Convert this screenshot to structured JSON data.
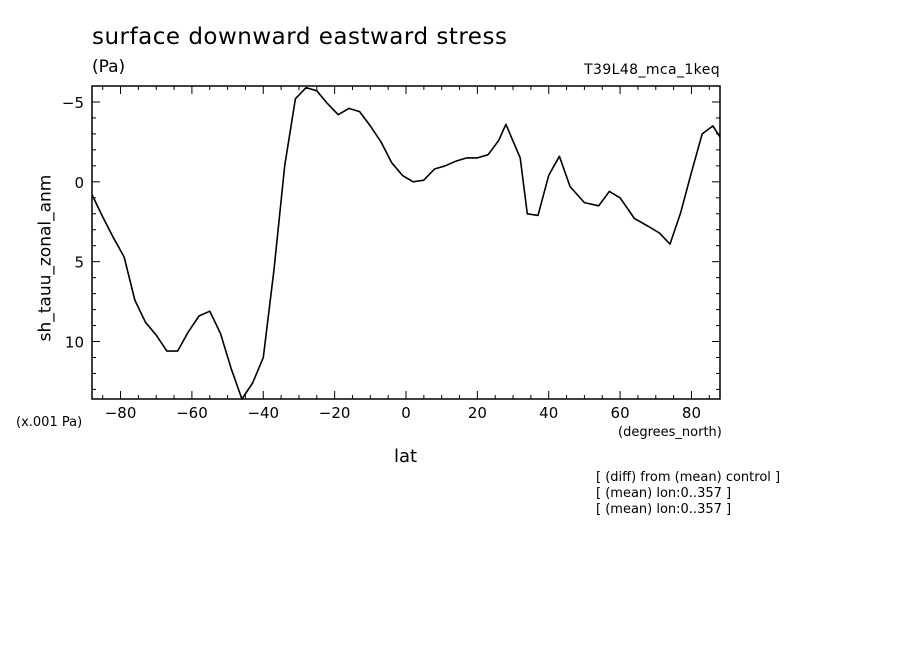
{
  "header": {
    "title": "surface downward eastward stress",
    "units": "(Pa)",
    "run": "T39L48_mca_1keq"
  },
  "annotations": {
    "scale": "(x.001 Pa)",
    "xunits": "(degrees_north)",
    "notes": [
      "[ (diff) from (mean) control ]",
      "[ (mean) lon:0..357 ]",
      "[ (mean) lon:0..357 ]"
    ]
  },
  "chart_data": {
    "type": "line",
    "title": "surface downward eastward stress",
    "xlabel": "lat",
    "ylabel": "sh_tauu_zonal_anm",
    "xlim": [
      -88,
      88
    ],
    "ylim": [
      13.6,
      -6
    ],
    "y_inverted": true,
    "x_ticks": [
      -80,
      -60,
      -40,
      -20,
      0,
      20,
      40,
      60,
      80
    ],
    "y_ticks": [
      -5,
      0,
      5,
      10
    ],
    "x_tick_labels": [
      "−80",
      "−60",
      "−40",
      "−20",
      "0",
      "20",
      "40",
      "60",
      "80"
    ],
    "y_tick_labels": [
      "−5",
      "0",
      "5",
      "10"
    ],
    "grid": false,
    "series": [
      {
        "color": "#000000",
        "x": [
          -88,
          -85,
          -82,
          -79,
          -76,
          -73,
          -70,
          -67,
          -64,
          -61,
          -58,
          -55,
          -52,
          -49,
          -46,
          -43,
          -40,
          -37,
          -34,
          -31,
          -28,
          -25,
          -22,
          -19,
          -16,
          -13,
          -10,
          -7,
          -4,
          -1,
          2,
          5,
          8,
          11,
          14,
          17,
          20,
          23,
          26,
          28,
          32,
          34,
          37,
          40,
          43,
          46,
          50,
          54,
          57,
          60,
          64,
          68,
          71,
          74,
          77,
          80,
          83,
          86,
          88
        ],
        "y": [
          0.8,
          2.2,
          3.5,
          4.7,
          7.4,
          8.8,
          9.6,
          10.6,
          10.6,
          9.4,
          8.4,
          8.1,
          9.5,
          11.7,
          13.6,
          12.6,
          11.0,
          5.5,
          -1.0,
          -5.2,
          -5.9,
          -5.7,
          -4.9,
          -4.2,
          -4.6,
          -4.4,
          -3.5,
          -2.5,
          -1.2,
          -0.4,
          0.0,
          -0.1,
          -0.8,
          -1.0,
          -1.3,
          -1.5,
          -1.5,
          -1.7,
          -2.6,
          -3.6,
          -1.5,
          2.0,
          2.1,
          -0.4,
          -1.6,
          0.3,
          1.3,
          1.5,
          0.6,
          1.0,
          2.3,
          2.8,
          3.2,
          3.9,
          1.9,
          -0.6,
          -3.0,
          -3.5,
          -2.8
        ]
      }
    ]
  }
}
